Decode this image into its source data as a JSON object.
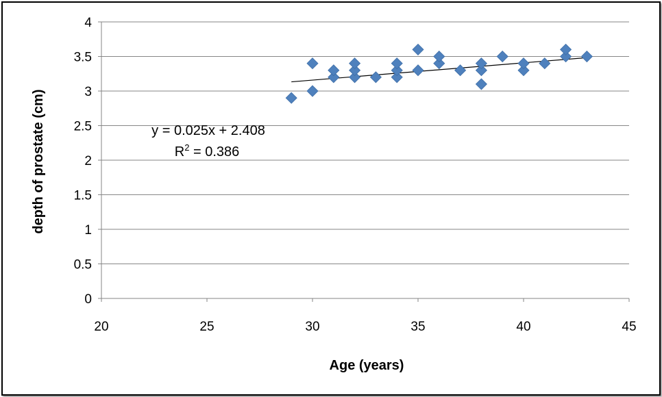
{
  "chart_data": {
    "type": "scatter",
    "title": "",
    "xlabel": "Age (years)",
    "ylabel": "depth of prostate (cm)",
    "xlim": [
      20,
      45
    ],
    "ylim": [
      0,
      4
    ],
    "x_ticks": [
      "20",
      "25",
      "30",
      "35",
      "40",
      "45"
    ],
    "y_ticks": [
      "0",
      "0.5",
      "1",
      "1.5",
      "2",
      "2.5",
      "3",
      "3.5",
      "4"
    ],
    "grid": "horizontal",
    "legend": "none",
    "marker": "diamond",
    "marker_color": "#4F81BD",
    "points": [
      {
        "x": 29,
        "y": 2.9
      },
      {
        "x": 30,
        "y": 3.0
      },
      {
        "x": 30,
        "y": 3.4
      },
      {
        "x": 31,
        "y": 3.2
      },
      {
        "x": 31,
        "y": 3.3
      },
      {
        "x": 32,
        "y": 3.2
      },
      {
        "x": 32,
        "y": 3.3
      },
      {
        "x": 32,
        "y": 3.4
      },
      {
        "x": 33,
        "y": 3.2
      },
      {
        "x": 34,
        "y": 3.2
      },
      {
        "x": 34,
        "y": 3.3
      },
      {
        "x": 34,
        "y": 3.4
      },
      {
        "x": 35,
        "y": 3.3
      },
      {
        "x": 35,
        "y": 3.6
      },
      {
        "x": 36,
        "y": 3.4
      },
      {
        "x": 36,
        "y": 3.5
      },
      {
        "x": 37,
        "y": 3.3
      },
      {
        "x": 38,
        "y": 3.1
      },
      {
        "x": 38,
        "y": 3.3
      },
      {
        "x": 38,
        "y": 3.4
      },
      {
        "x": 39,
        "y": 3.5
      },
      {
        "x": 40,
        "y": 3.3
      },
      {
        "x": 40,
        "y": 3.4
      },
      {
        "x": 41,
        "y": 3.4
      },
      {
        "x": 42,
        "y": 3.5
      },
      {
        "x": 42,
        "y": 3.6
      },
      {
        "x": 43,
        "y": 3.5
      }
    ],
    "trendline": {
      "type": "linear",
      "slope": 0.025,
      "intercept": 2.408,
      "x_range": [
        29,
        43
      ],
      "color": "#000000"
    },
    "annotations": {
      "equation": "y = 0.025x + 2.408",
      "r2_prefix": "R",
      "r2_sup": "2",
      "r2_suffix": " = 0.386"
    }
  }
}
